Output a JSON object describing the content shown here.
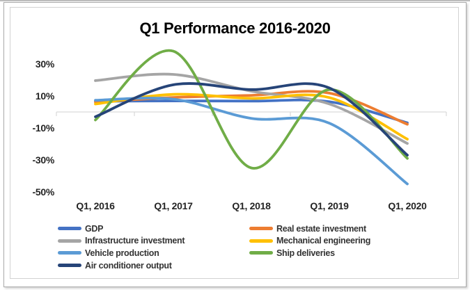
{
  "chart_data": {
    "type": "line",
    "smooth": true,
    "title": "Q1 Performance 2016-2020",
    "categories": [
      "Q1, 2016",
      "Q1, 2017",
      "Q1, 2018",
      "Q1, 2019",
      "Q1, 2020"
    ],
    "series": [
      {
        "name": "GDP",
        "color": "#4472C4",
        "values": [
          6.7,
          6.9,
          6.8,
          6.4,
          -6.8
        ]
      },
      {
        "name": "Real estate investment",
        "color": "#ED7D31",
        "values": [
          6.2,
          9.1,
          10.4,
          11.8,
          -7.7
        ]
      },
      {
        "name": "Infrastructure investment",
        "color": "#A5A5A5",
        "values": [
          19.6,
          23.5,
          13,
          5,
          -19.7
        ]
      },
      {
        "name": "Mechanical engineering",
        "color": "#FFC000",
        "values": [
          5,
          11,
          8.5,
          9,
          -17
        ]
      },
      {
        "name": "Vehicle production",
        "color": "#5B9BD5",
        "values": [
          7.3,
          8,
          -4,
          -7,
          -45
        ]
      },
      {
        "name": "Ship deliveries",
        "color": "#70AD47",
        "values": [
          -5,
          38,
          -35,
          14,
          -29
        ]
      },
      {
        "name": "Air conditioner output",
        "color": "#264478",
        "values": [
          -3,
          17,
          14,
          15,
          -27
        ]
      }
    ],
    "yaxis": {
      "tick_labels": [
        "30%",
        "10%",
        "-10%",
        "-30%",
        "-50%"
      ],
      "tick_values": [
        30,
        10,
        -10,
        -30,
        -50
      ],
      "range": [
        -55,
        42
      ],
      "format": "percent"
    },
    "xlabel": "",
    "ylabel": "",
    "grid": {
      "horizontal": "zero-line-only",
      "axis_color": "#D9D9D9"
    },
    "legend": {
      "position": "bottom",
      "columns": 2
    }
  }
}
